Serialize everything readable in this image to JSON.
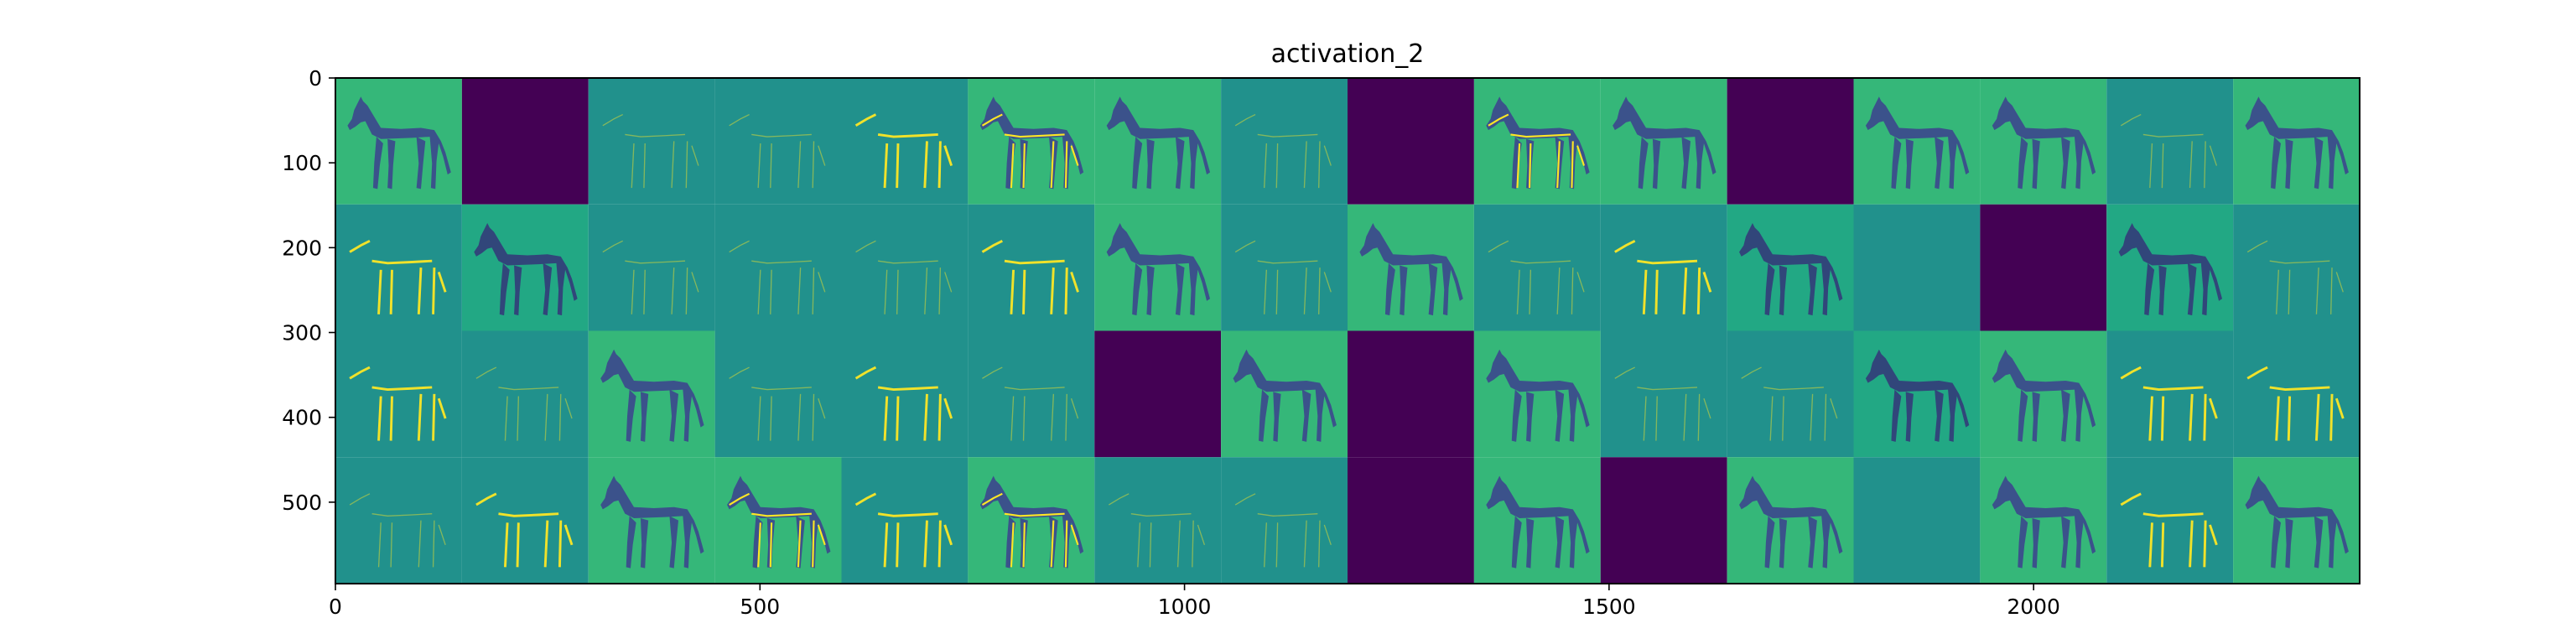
{
  "chart_data": {
    "type": "heatmap",
    "title": "activation_2",
    "xlabel": "",
    "ylabel": "",
    "xlim": [
      0,
      2384
    ],
    "ylim": [
      596,
      0
    ],
    "x_ticks": [
      0,
      500,
      1000,
      1500,
      2000
    ],
    "y_ticks": [
      0,
      100,
      200,
      300,
      400,
      500
    ],
    "grid": false,
    "colormap": "viridis",
    "grid_layout": {
      "rows": 4,
      "cols": 16,
      "tile_size": 149
    },
    "tiles": [
      [
        "horse-mid",
        "dead",
        "edge-faint",
        "edge-faint",
        "edge",
        "horse-edge",
        "horse-mid",
        "edge-faint",
        "dead",
        "horse-edge",
        "horse-mid",
        "dead",
        "horse-mid",
        "horse-mid",
        "edge-faint",
        "horse-mid"
      ],
      [
        "edge",
        "horse-dark",
        "edge-faint",
        "edge-faint",
        "edge-faint",
        "edge",
        "horse-mid",
        "edge-faint",
        "horse-mid",
        "edge-faint",
        "edge",
        "horse-dark",
        "flat",
        "dead",
        "horse-dark",
        "edge-faint"
      ],
      [
        "edge",
        "edge-faint",
        "horse-mid",
        "edge-faint",
        "edge",
        "edge-faint",
        "dead",
        "horse-mid",
        "dead",
        "horse-mid",
        "edge-faint",
        "edge-faint",
        "horse-dark",
        "horse-mid",
        "edge",
        "edge"
      ],
      [
        "edge-faint",
        "edge",
        "horse-mid",
        "horse-edge",
        "edge",
        "horse-edge",
        "edge-faint",
        "edge-faint",
        "dead",
        "horse-mid",
        "dead",
        "horse-mid",
        "flat",
        "horse-mid",
        "edge",
        "horse-mid"
      ]
    ]
  },
  "colors": {
    "dead": "#440154",
    "flat": "#21918c",
    "bg_bright": "#35b779",
    "bg_mid": "#22a884",
    "horse": "#3b528b",
    "horse_dark": "#31467a",
    "edge_line": "#fde725",
    "axis": "#000000"
  }
}
